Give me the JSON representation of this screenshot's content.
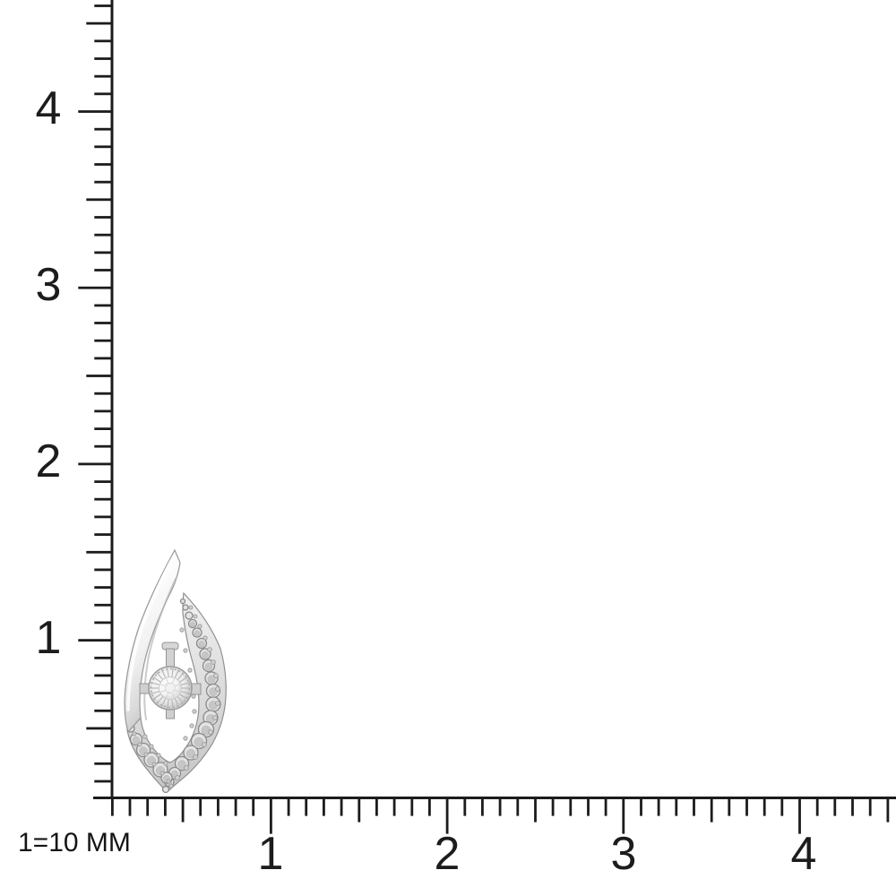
{
  "canvas": {
    "background": "#ffffff"
  },
  "colors": {
    "ruler": "#1c1c1c",
    "metal_light": "#f7f7f7",
    "metal_mid": "#d6d6d6",
    "metal_dark": "#9e9e9e",
    "bead_ring": "#8a8a8a",
    "plate_ray": "#b3b3b3",
    "diamond_fleck_blue": "#cfe6ee",
    "diamond_fleck_warm": "#f0ddd1"
  },
  "scale_note": {
    "text": "1=10 MM"
  },
  "vertical_ruler": {
    "unit": "10 MM per numbered division",
    "labels": [
      {
        "value": "4"
      },
      {
        "value": "3"
      },
      {
        "value": "2"
      },
      {
        "value": "1"
      }
    ]
  },
  "horizontal_ruler": {
    "unit": "10 MM per numbered division",
    "labels": [
      {
        "value": "1"
      },
      {
        "value": "2"
      },
      {
        "value": "3"
      },
      {
        "value": "4"
      }
    ]
  },
  "subject": {
    "name": "diamond pendant",
    "description": "White-metal open flame/leaf pendant with beaded (milgrain) frame and a round center diamond in a sunburst illusion setting, approx. 6 mm wide by 13.5 mm tall on the scale"
  }
}
